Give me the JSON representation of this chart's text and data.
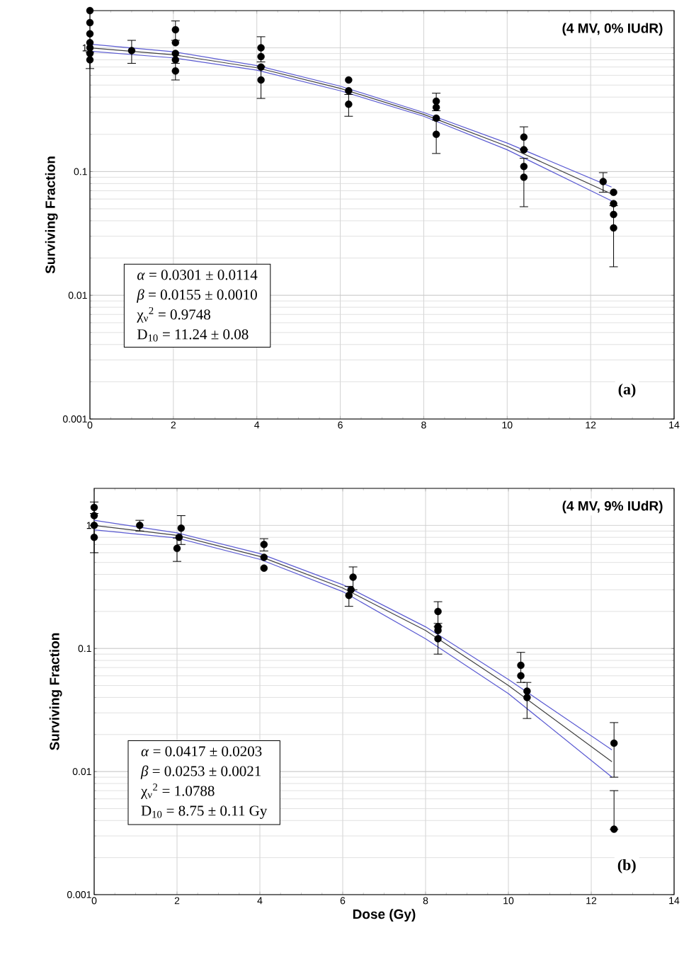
{
  "chart_data": [
    {
      "type": "scatter",
      "ylabel": "Surviving Fraction",
      "log": "y",
      "grid": true,
      "xlim": [
        0,
        14
      ],
      "xticks": [
        0,
        2,
        4,
        6,
        8,
        10,
        12,
        14
      ],
      "ylim": [
        0.001,
        2
      ],
      "yticks": [
        0.001,
        0.01,
        0.1,
        1
      ],
      "annotations": [
        "(4 MV, 0% IUdR)",
        "*α* = 0.0301 ± 0.0114",
        "*β* = 0.0155 ± 0.0010",
        "χ$_{ν}$$^{2}$ = 0.9748",
        "D$_{10}$ = 11.24 ± 0.08",
        "(a)"
      ],
      "series": [
        {
          "type": "line",
          "color": "#5a5ad2",
          "line_style": "solid",
          "marker": "none",
          "x": [
            0,
            2,
            4,
            6,
            8,
            10,
            12.5
          ],
          "values": [
            1.07,
            0.93,
            0.72,
            0.49,
            0.3,
            0.17,
            0.075
          ]
        },
        {
          "type": "line",
          "color": "#404040",
          "line_style": "solid",
          "marker": "none",
          "x": [
            0,
            2,
            4,
            6,
            8,
            10,
            12.5
          ],
          "values": [
            1.0,
            0.88,
            0.69,
            0.47,
            0.29,
            0.16,
            0.066
          ]
        },
        {
          "type": "line",
          "color": "#5a5ad2",
          "line_style": "solid",
          "marker": "none",
          "x": [
            0,
            2,
            4,
            6,
            8,
            10,
            12.5
          ],
          "values": [
            0.94,
            0.83,
            0.66,
            0.45,
            0.28,
            0.15,
            0.058
          ]
        },
        {
          "type": "scatter",
          "color": "#000000",
          "marker": "circle",
          "x": [
            0,
            0,
            0,
            0,
            0,
            0,
            0,
            1,
            2.05,
            2.05,
            2.05,
            2.05,
            2.05,
            4.1,
            4.1,
            4.1,
            4.1,
            6.2,
            6.2,
            6.2,
            8.3,
            8.3,
            8.3,
            8.3,
            10.4,
            10.4,
            10.4,
            10.4,
            12.3,
            12.55,
            12.55,
            12.55,
            12.55
          ],
          "values": [
            0.8,
            0.9,
            1.0,
            1.1,
            1.3,
            1.6,
            2.0,
            0.95,
            0.65,
            0.8,
            0.9,
            1.1,
            1.4,
            0.55,
            0.7,
            0.85,
            1.0,
            0.35,
            0.45,
            0.55,
            0.2,
            0.27,
            0.33,
            0.37,
            0.09,
            0.11,
            0.15,
            0.19,
            0.083,
            0.035,
            0.045,
            0.055,
            0.068
          ],
          "errors": [
            0.12,
            null,
            null,
            null,
            null,
            null,
            null,
            0.2,
            0.1,
            null,
            null,
            null,
            0.25,
            0.16,
            null,
            null,
            0.23,
            0.07,
            null,
            null,
            0.06,
            null,
            null,
            0.06,
            0.038,
            null,
            null,
            0.04,
            0.015,
            0.018,
            null,
            null,
            null
          ]
        }
      ]
    },
    {
      "type": "scatter",
      "ylabel": "Surviving Fraction",
      "xlabel": "Dose (Gy)",
      "log": "y",
      "grid": true,
      "xlim": [
        0,
        14
      ],
      "xticks": [
        0,
        2,
        4,
        6,
        8,
        10,
        12,
        14
      ],
      "ylim": [
        0.001,
        2
      ],
      "yticks": [
        0.001,
        0.01,
        0.1,
        1
      ],
      "annotations": [
        "(4 MV, 9% IUdR)",
        "*α* = 0.0417 ± 0.0203",
        "*β* = 0.0253 ± 0.0021",
        "χ$_{ν}$$^{2}$ = 1.0788",
        "D$_{10}$ = 8.75 ± 0.11 Gy",
        "(b)"
      ],
      "series": [
        {
          "type": "line",
          "color": "#5a5ad2",
          "line_style": "solid",
          "marker": "none",
          "x": [
            0,
            2,
            4,
            6,
            8,
            10,
            12.5
          ],
          "values": [
            1.1,
            0.87,
            0.59,
            0.33,
            0.15,
            0.056,
            0.015
          ]
        },
        {
          "type": "line",
          "color": "#404040",
          "line_style": "solid",
          "marker": "none",
          "x": [
            0,
            2,
            4,
            6,
            8,
            10,
            12.5
          ],
          "values": [
            1.0,
            0.83,
            0.56,
            0.31,
            0.14,
            0.05,
            0.012
          ]
        },
        {
          "type": "line",
          "color": "#5a5ad2",
          "line_style": "solid",
          "marker": "none",
          "x": [
            0,
            2,
            4,
            6,
            8,
            10,
            12.5
          ],
          "values": [
            0.92,
            0.79,
            0.53,
            0.29,
            0.12,
            0.043,
            0.009
          ]
        },
        {
          "type": "scatter",
          "color": "#000000",
          "marker": "circle",
          "x": [
            0,
            0,
            0,
            0,
            1.1,
            2.0,
            2.05,
            2.1,
            4.1,
            4.1,
            4.1,
            6.15,
            6.2,
            6.25,
            8.3,
            8.3,
            8.3,
            8.3,
            10.3,
            10.3,
            10.45,
            10.45,
            12.55,
            12.55
          ],
          "values": [
            0.8,
            1.0,
            1.2,
            1.4,
            1.0,
            0.65,
            0.8,
            0.95,
            0.45,
            0.55,
            0.7,
            0.27,
            0.3,
            0.38,
            0.2,
            0.15,
            0.14,
            0.12,
            0.073,
            0.06,
            0.045,
            0.04,
            0.017,
            0.0034
          ],
          "errors": [
            0.2,
            null,
            null,
            0.15,
            0.1,
            0.14,
            null,
            0.25,
            null,
            null,
            0.08,
            0.05,
            null,
            0.08,
            0.04,
            null,
            null,
            0.03,
            0.02,
            null,
            null,
            0.013,
            0.008,
            [
              0.0034,
              0.007
            ]
          ]
        }
      ]
    }
  ]
}
